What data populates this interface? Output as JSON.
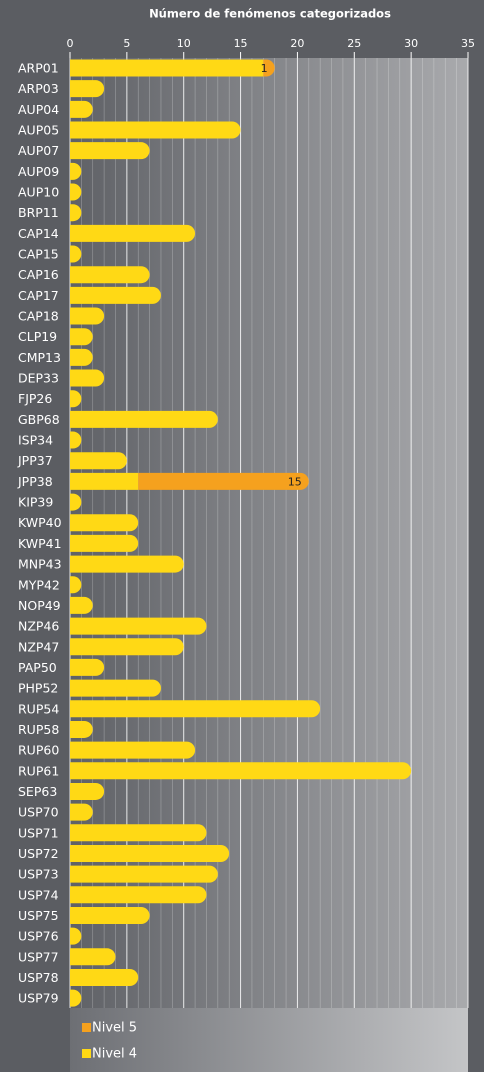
{
  "chart_data": {
    "type": "bar",
    "orientation": "horizontal",
    "stacked": true,
    "title": "Número de fenómenos categorizados",
    "categories": [
      "ARP01",
      "ARP03",
      "AUP04",
      "AUP05",
      "AUP07",
      "AUP09",
      "AUP10",
      "BRP11",
      "CAP14",
      "CAP15",
      "CAP16",
      "CAP17",
      "CAP18",
      "CLP19",
      "CMP13",
      "DEP33",
      "FJP26",
      "GBP68",
      "ISP34",
      "JPP37",
      "JPP38",
      "KIP39",
      "KWP40",
      "KWP41",
      "MNP43",
      "MYP42",
      "NOP49",
      "NZP46",
      "NZP47",
      "PAP50",
      "PHP52",
      "RUP54",
      "RUP58",
      "RUP60",
      "RUP61",
      "SEP63",
      "USP70",
      "USP71",
      "USP72",
      "USP73",
      "USP74",
      "USP75",
      "USP76",
      "USP77",
      "USP78",
      "USP79"
    ],
    "series": [
      {
        "name": "Nivel 4",
        "color": "#ffd915",
        "values": [
          17,
          3,
          2,
          15,
          7,
          1,
          1,
          1,
          11,
          1,
          7,
          8,
          3,
          2,
          2,
          3,
          1,
          13,
          1,
          5,
          6,
          1,
          6,
          6,
          10,
          1,
          2,
          12,
          10,
          3,
          8,
          22,
          2,
          11,
          30,
          3,
          2,
          12,
          14,
          13,
          12,
          7,
          1,
          4,
          6,
          1
        ]
      },
      {
        "name": "Nivel 5",
        "color": "#f5a11e",
        "values": [
          1,
          null,
          null,
          null,
          null,
          null,
          null,
          null,
          null,
          null,
          null,
          null,
          null,
          null,
          null,
          null,
          null,
          null,
          null,
          null,
          15,
          null,
          null,
          null,
          null,
          null,
          null,
          null,
          null,
          null,
          null,
          null,
          null,
          null,
          null,
          null,
          null,
          null,
          null,
          null,
          null,
          null,
          null,
          null,
          null,
          null
        ]
      }
    ],
    "xlim": [
      0,
      35
    ],
    "xticks": [
      0,
      5,
      10,
      15,
      20,
      25,
      30,
      35
    ],
    "grid": true,
    "legend": "bottom"
  }
}
